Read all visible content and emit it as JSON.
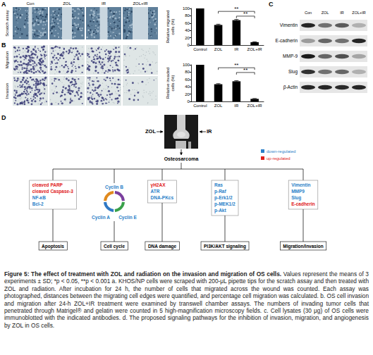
{
  "panels": {
    "A": {
      "label": "A",
      "columns": [
        "Con",
        "ZOL",
        "IR",
        "ZOL+IR"
      ],
      "row": "Scratch assay"
    },
    "B": {
      "label": "B",
      "rows": [
        "Migration",
        "Invasion"
      ]
    },
    "C": {
      "label": "C",
      "lanes": [
        "Con",
        "ZOL",
        "IR",
        "ZOL+IR"
      ],
      "rows": [
        "Vimentin",
        "E-cadherin",
        "MMP-9",
        "Slug",
        "β-Actin"
      ]
    },
    "D": {
      "label": "D",
      "treatments": [
        "ZOL",
        "IR"
      ],
      "target": "Osteosarcoma",
      "legend": [
        {
          "text": "down-regulated",
          "color": "#2a7fc8"
        },
        {
          "text": "up-regulated",
          "color": "#e0201b"
        }
      ],
      "branches": [
        {
          "title": "Apoptosis",
          "type": "list",
          "items": [
            {
              "text": "cleaved PARP",
              "color": "#e0201b"
            },
            {
              "text": "cleaved Caspase-3",
              "color": "#e0201b"
            },
            {
              "text": "NF-κB",
              "color": "#2a7fc8"
            },
            {
              "text": "Bcl-2",
              "color": "#2a7fc8"
            }
          ]
        },
        {
          "title": "Cell cycle",
          "type": "cycle",
          "items": [
            {
              "text": "Cyclin B",
              "color": "#2a7fc8"
            },
            {
              "text": "Cyclin A",
              "color": "#2a7fc8"
            },
            {
              "text": "Cyclin E",
              "color": "#2a7fc8"
            }
          ]
        },
        {
          "title": "DNA damage",
          "type": "list",
          "items": [
            {
              "text": "γH2AX",
              "color": "#e0201b"
            },
            {
              "text": "ATR",
              "color": "#2a7fc8"
            },
            {
              "text": "DNA-PKcs",
              "color": "#2a7fc8"
            }
          ]
        },
        {
          "title": "PI3K/AKT signaling",
          "type": "list",
          "items": [
            {
              "text": "Ras",
              "color": "#2a7fc8"
            },
            {
              "text": "p-Raf",
              "color": "#2a7fc8"
            },
            {
              "text": "p-Erk1/2",
              "color": "#2a7fc8"
            },
            {
              "text": "p-MEK1/2",
              "color": "#2a7fc8"
            },
            {
              "text": "p-Akt",
              "color": "#2a7fc8"
            }
          ]
        },
        {
          "title": "Migration/Invasion",
          "type": "list",
          "items": [
            {
              "text": "Vimentin",
              "color": "#2a7fc8"
            },
            {
              "text": "MMP9",
              "color": "#2a7fc8"
            },
            {
              "text": "Slug",
              "color": "#2a7fc8"
            },
            {
              "text": "E-cadherin",
              "color": "#e0201b"
            }
          ]
        }
      ]
    }
  },
  "chart_data": [
    {
      "type": "bar",
      "ylabel": "Relative migrated cells (%)",
      "categories": [
        "Control",
        "ZOL",
        "IR",
        "ZOL+IR"
      ],
      "values": [
        100,
        55,
        68,
        8
      ],
      "errors": [
        0,
        2,
        2,
        1
      ],
      "color": "#000000",
      "ylim": [
        0,
        100
      ],
      "yticks": [
        0,
        20,
        40,
        60,
        80,
        100
      ],
      "grid": false,
      "annotations": [
        {
          "from": "ZOL",
          "to": "ZOL+IR",
          "text": "**"
        },
        {
          "from": "IR",
          "to": "ZOL+IR",
          "text": "**"
        }
      ]
    },
    {
      "type": "bar",
      "ylabel": "Relative invaded cells (%)",
      "categories": [
        "Control",
        "ZOL",
        "IR",
        "ZOL+IR"
      ],
      "values": [
        100,
        47,
        55,
        7
      ],
      "errors": [
        0,
        1.5,
        1.5,
        1
      ],
      "color": "#000000",
      "ylim": [
        0,
        100
      ],
      "yticks": [
        0,
        20,
        40,
        60,
        80,
        100
      ],
      "grid": false,
      "annotations": [
        {
          "from": "ZOL",
          "to": "ZOL+IR",
          "text": "**"
        },
        {
          "from": "IR",
          "to": "ZOL+IR",
          "text": "**"
        }
      ]
    }
  ],
  "caption": {
    "title": "Figure 5: The effect of treatment with ZOL and radiation on the invasion and migration of OS cells.",
    "body": "Values represent the means of 3 experiments ± SD; *p < 0.05, **p < 0.001 a. KHOS/NP cells were scraped with 200-μL pipette tips for the scratch assay and then treated with ZOL and radiation. After incubation for 24 h, the number of cells that migrated across the wound was counted. Each assay was photographed, distances between the migrating cell edges were quantified, and percentage cell migration was calculated. b. OS cell invasion and migration after 24-h ZOL+IR treatment were examined by transwell chamber assays. The numbers of invading tumor cells that penetrated through Matrigel® and gelatin were counted in 5 high-magnification microscopy fields. c. Cell lysates (30 μg) of OS cells were immunoblotted with the indicated antibodies. d. The proposed signaling pathways for the inhibition of invasion, migration, and angiogenesis by ZOL in OS cells."
  }
}
